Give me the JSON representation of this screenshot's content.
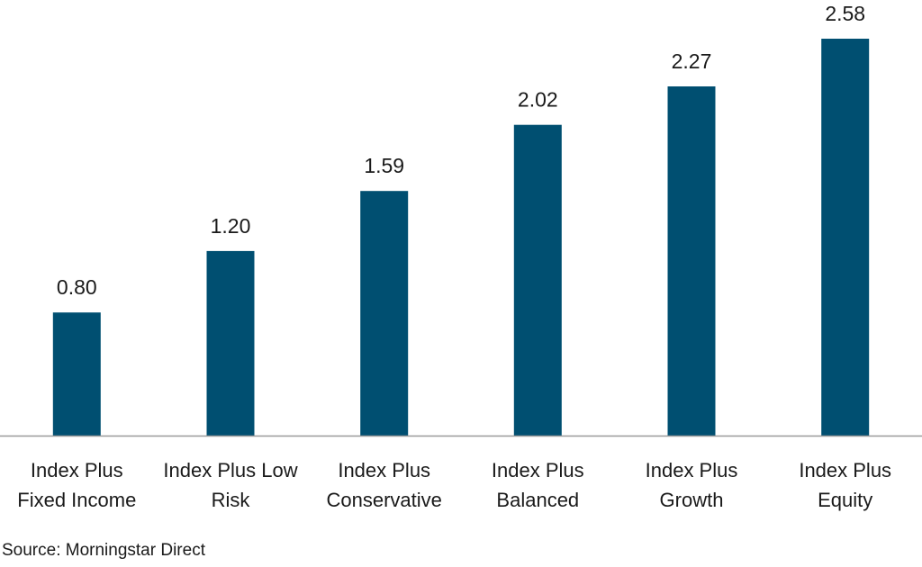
{
  "chart_data": {
    "type": "bar",
    "categories": [
      [
        "Index Plus",
        "Fixed Income"
      ],
      [
        "Index Plus Low",
        "Risk"
      ],
      [
        "Index Plus",
        "Conservative"
      ],
      [
        "Index Plus",
        "Balanced"
      ],
      [
        "Index Plus",
        "Growth"
      ],
      [
        "Index Plus",
        "Equity"
      ]
    ],
    "values": [
      0.8,
      1.2,
      1.59,
      2.02,
      2.27,
      2.58
    ],
    "value_labels": [
      "0.80",
      "1.20",
      "1.59",
      "2.02",
      "2.27",
      "2.58"
    ],
    "bar_color": "#004f71",
    "axis_color": "#999999",
    "ylim": [
      0,
      2.65
    ],
    "grid": false,
    "legend": "none"
  },
  "source": "Source: Morningstar Direct"
}
